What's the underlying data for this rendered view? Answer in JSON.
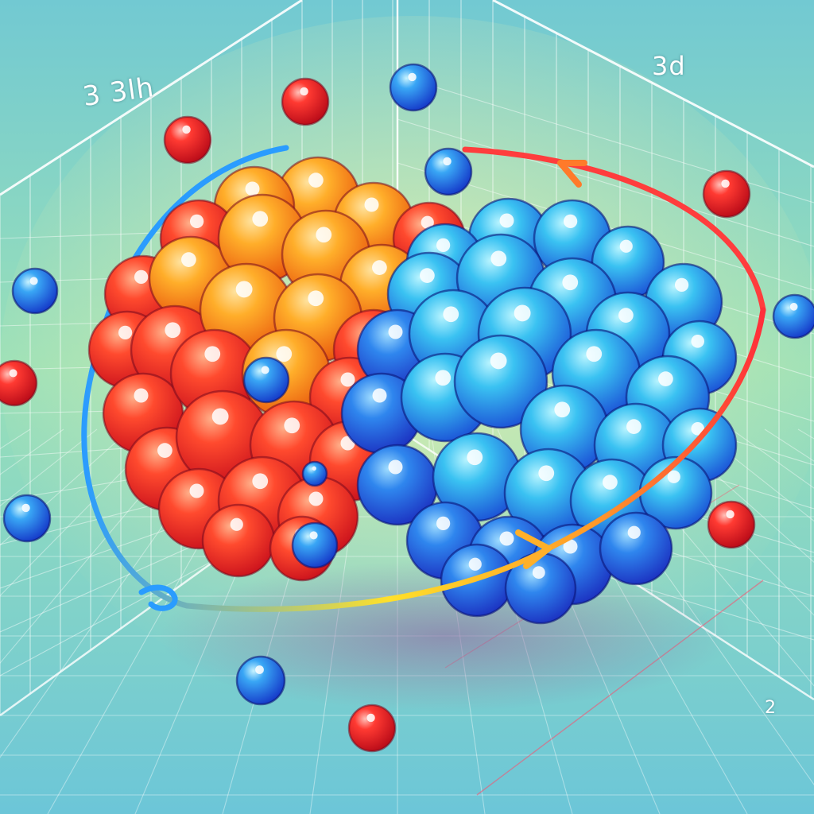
{
  "labels": {
    "top_left": "3  3lh",
    "top_right": "3d",
    "bottom_right": "2"
  },
  "colors": {
    "background_top": "#72c9d2",
    "background_mid": "#9ae0b8",
    "background_bottom": "#6cc6d8",
    "grid_line": "#ffffff",
    "proton_light": "#ffb347",
    "proton_dark": "#ff2a2a",
    "neutron_light": "#4fd8f4",
    "neutron_dark": "#1e5bea",
    "electron_blue": "#1a7df0",
    "electron_red": "#f21f2c",
    "orbit_blue": "#2a9cff",
    "orbit_red": "#ff3a3a",
    "orbit_yellow": "#ffe02a"
  },
  "icons": [
    "proton-sphere",
    "neutron-sphere",
    "electron-particle",
    "orbit-arrow"
  ]
}
